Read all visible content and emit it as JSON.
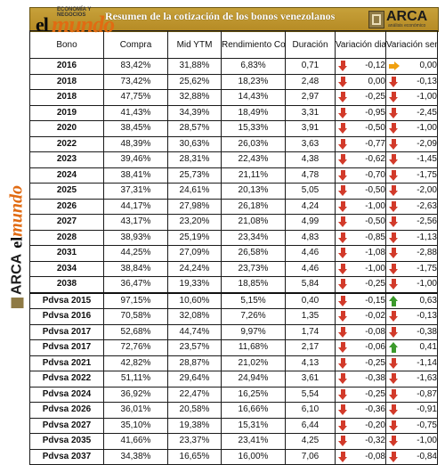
{
  "header": {
    "title": "Resumen de la cotización de los bonos venezolanos",
    "logo_left": {
      "el": "el",
      "mundo": "mundo",
      "sub": "ECONOMÍA\nY NEGOCIOS"
    },
    "logo_right": {
      "name": "ARCA",
      "tag": "análisis económico"
    }
  },
  "side_logo": {
    "arca": "ARCA",
    "el": "el",
    "mundo": "mundo"
  },
  "columns": {
    "bono": "Bono",
    "compra": "Compra",
    "ytm": "Mid YTM",
    "rend": "Rendimiento Corriente",
    "dur": "Duración",
    "vd": "Variación diaria",
    "vs": "Variación semanal"
  },
  "colors": {
    "down": "#d23a2a",
    "up": "#3b9a2b",
    "flat": "#f0a010",
    "header": "#b8902a"
  },
  "rows": [
    {
      "bono": "2016",
      "compra": "83,42%",
      "ytm": "31,88%",
      "rend": "6,83%",
      "dur": "0,71",
      "vd": "-0,12",
      "vd_icon": "down-arrow-icon",
      "vs": "0,00",
      "vs_icon": "right-arrow-icon"
    },
    {
      "bono": "2018",
      "compra": "73,42%",
      "ytm": "25,62%",
      "rend": "18,23%",
      "dur": "2,48",
      "vd": "0,00",
      "vd_icon": "down-arrow-icon",
      "vs": "-0,13",
      "vs_icon": "down-arrow-icon"
    },
    {
      "bono": "2018",
      "compra": "47,75%",
      "ytm": "32,88%",
      "rend": "14,43%",
      "dur": "2,97",
      "vd": "-0,25",
      "vd_icon": "down-arrow-icon",
      "vs": "-1,00",
      "vs_icon": "down-arrow-icon"
    },
    {
      "bono": "2019",
      "compra": "41,43%",
      "ytm": "34,39%",
      "rend": "18,49%",
      "dur": "3,31",
      "vd": "-0,95",
      "vd_icon": "down-arrow-icon",
      "vs": "-2,45",
      "vs_icon": "down-arrow-icon"
    },
    {
      "bono": "2020",
      "compra": "38,45%",
      "ytm": "28,57%",
      "rend": "15,33%",
      "dur": "3,91",
      "vd": "-0,50",
      "vd_icon": "down-arrow-icon",
      "vs": "-1,00",
      "vs_icon": "down-arrow-icon"
    },
    {
      "bono": "2022",
      "compra": "48,39%",
      "ytm": "30,63%",
      "rend": "26,03%",
      "dur": "3,63",
      "vd": "-0,77",
      "vd_icon": "down-arrow-icon",
      "vs": "-2,09",
      "vs_icon": "down-arrow-icon"
    },
    {
      "bono": "2023",
      "compra": "39,46%",
      "ytm": "28,31%",
      "rend": "22,43%",
      "dur": "4,38",
      "vd": "-0,62",
      "vd_icon": "down-arrow-icon",
      "vs": "-1,45",
      "vs_icon": "down-arrow-icon"
    },
    {
      "bono": "2024",
      "compra": "38,41%",
      "ytm": "25,73%",
      "rend": "21,11%",
      "dur": "4,78",
      "vd": "-0,70",
      "vd_icon": "down-arrow-icon",
      "vs": "-1,75",
      "vs_icon": "down-arrow-icon"
    },
    {
      "bono": "2025",
      "compra": "37,31%",
      "ytm": "24,61%",
      "rend": "20,13%",
      "dur": "5,05",
      "vd": "-0,50",
      "vd_icon": "down-arrow-icon",
      "vs": "-2,00",
      "vs_icon": "down-arrow-icon"
    },
    {
      "bono": "2026",
      "compra": "44,17%",
      "ytm": "27,98%",
      "rend": "26,18%",
      "dur": "4,24",
      "vd": "-1,00",
      "vd_icon": "down-arrow-icon",
      "vs": "-2,63",
      "vs_icon": "down-arrow-icon"
    },
    {
      "bono": "2027",
      "compra": "43,17%",
      "ytm": "23,20%",
      "rend": "21,08%",
      "dur": "4,99",
      "vd": "-0,50",
      "vd_icon": "down-arrow-icon",
      "vs": "-2,56",
      "vs_icon": "down-arrow-icon"
    },
    {
      "bono": "2028",
      "compra": "38,93%",
      "ytm": "25,19%",
      "rend": "23,34%",
      "dur": "4,83",
      "vd": "-0,85",
      "vd_icon": "down-arrow-icon",
      "vs": "-1,13",
      "vs_icon": "down-arrow-icon"
    },
    {
      "bono": "2031",
      "compra": "44,25%",
      "ytm": "27,09%",
      "rend": "26,58%",
      "dur": "4,46",
      "vd": "-1,08",
      "vd_icon": "down-arrow-icon",
      "vs": "-2,88",
      "vs_icon": "down-arrow-icon"
    },
    {
      "bono": "2034",
      "compra": "38,84%",
      "ytm": "24,24%",
      "rend": "23,73%",
      "dur": "4,46",
      "vd": "-1,00",
      "vd_icon": "down-arrow-icon",
      "vs": "-1,75",
      "vs_icon": "down-arrow-icon"
    },
    {
      "bono": "2038",
      "compra": "36,47%",
      "ytm": "19,33%",
      "rend": "18,85%",
      "dur": "5,84",
      "vd": "-0,25",
      "vd_icon": "down-arrow-icon",
      "vs": "-1,00",
      "vs_icon": "down-arrow-icon"
    },
    {
      "bono": "Pdvsa 2015",
      "compra": "97,15%",
      "ytm": "10,60%",
      "rend": "5,15%",
      "dur": "0,40",
      "vd": "-0,15",
      "vd_icon": "down-arrow-icon",
      "vs": "0,63",
      "vs_icon": "up-arrow-icon"
    },
    {
      "bono": "Pdvsa 2016",
      "compra": "70,58%",
      "ytm": "32,08%",
      "rend": "7,26%",
      "dur": "1,35",
      "vd": "-0,02",
      "vd_icon": "down-arrow-icon",
      "vs": "-0,13",
      "vs_icon": "down-arrow-icon"
    },
    {
      "bono": "Pdvsa 2017",
      "compra": "52,68%",
      "ytm": "44,74%",
      "rend": "9,97%",
      "dur": "1,74",
      "vd": "-0,08",
      "vd_icon": "down-arrow-icon",
      "vs": "-0,38",
      "vs_icon": "down-arrow-icon"
    },
    {
      "bono": "Pdvsa 2017",
      "compra": "72,76%",
      "ytm": "23,57%",
      "rend": "11,68%",
      "dur": "2,17",
      "vd": "-0,06",
      "vd_icon": "down-arrow-icon",
      "vs": "0,41",
      "vs_icon": "up-arrow-icon"
    },
    {
      "bono": "Pdvsa 2021",
      "compra": "42,82%",
      "ytm": "28,87%",
      "rend": "21,02%",
      "dur": "4,13",
      "vd": "-0,25",
      "vd_icon": "down-arrow-icon",
      "vs": "-1,14",
      "vs_icon": "down-arrow-icon"
    },
    {
      "bono": "Pdvsa 2022",
      "compra": "51,11%",
      "ytm": "29,64%",
      "rend": "24,94%",
      "dur": "3,61",
      "vd": "-0,38",
      "vd_icon": "down-arrow-icon",
      "vs": "-1,63",
      "vs_icon": "down-arrow-icon"
    },
    {
      "bono": "Pdvsa 2024",
      "compra": "36,92%",
      "ytm": "22,47%",
      "rend": "16,25%",
      "dur": "5,54",
      "vd": "-0,25",
      "vd_icon": "down-arrow-icon",
      "vs": "-0,87",
      "vs_icon": "down-arrow-icon"
    },
    {
      "bono": "Pdvsa 2026",
      "compra": "36,01%",
      "ytm": "20,58%",
      "rend": "16,66%",
      "dur": "6,10",
      "vd": "-0,36",
      "vd_icon": "down-arrow-icon",
      "vs": "-0,91",
      "vs_icon": "down-arrow-icon"
    },
    {
      "bono": "Pdvsa 2027",
      "compra": "35,10%",
      "ytm": "19,38%",
      "rend": "15,31%",
      "dur": "6,44",
      "vd": "-0,20",
      "vd_icon": "down-arrow-icon",
      "vs": "-0,75",
      "vs_icon": "down-arrow-icon"
    },
    {
      "bono": "Pdvsa 2035",
      "compra": "41,66%",
      "ytm": "23,37%",
      "rend": "23,41%",
      "dur": "4,25",
      "vd": "-0,32",
      "vd_icon": "down-arrow-icon",
      "vs": "-1,00",
      "vs_icon": "down-arrow-icon"
    },
    {
      "bono": "Pdvsa 2037",
      "compra": "34,38%",
      "ytm": "16,65%",
      "rend": "16,00%",
      "dur": "7,06",
      "vd": "-0,08",
      "vd_icon": "down-arrow-icon",
      "vs": "-0,84",
      "vs_icon": "down-arrow-icon"
    }
  ]
}
